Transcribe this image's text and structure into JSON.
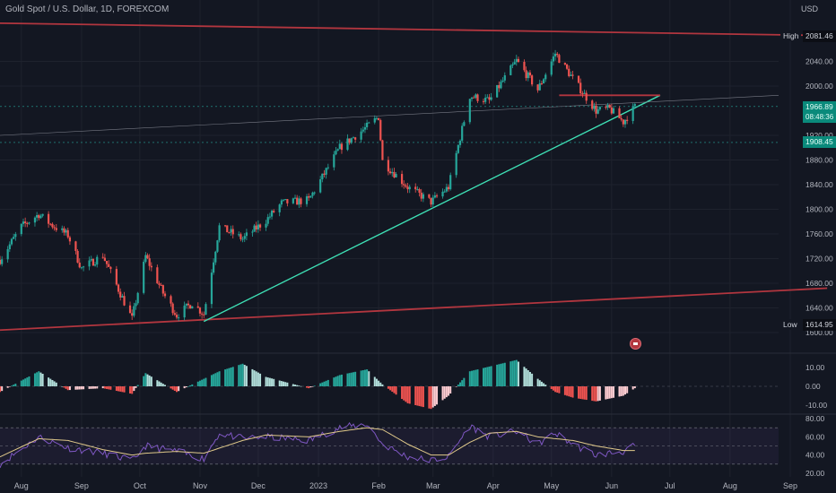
{
  "header": {
    "symbol_line": "Gold Spot / U.S. Dollar, 1D, FOREXCOM",
    "currency": "USD"
  },
  "markers": {
    "high": {
      "label": "High",
      "value": "2081.46"
    },
    "low": {
      "label": "Low",
      "value": "1614.95"
    },
    "last_price": "1966.89",
    "countdown": "08:48:36",
    "ref_price": "1908.45"
  },
  "colors": {
    "background": "#131722",
    "up": "#26a69a",
    "down": "#ef5350",
    "channel": "#b2363f",
    "trend": "#3ee0b5",
    "osc_up": "#26a69a",
    "osc_down": "#ef5350",
    "rsi": "#7e57c2",
    "rsi_ma": "#e0c98a"
  },
  "chart_data": [
    {
      "type": "candlestick",
      "title": "Gold Spot / U.S. Dollar, 1D, FOREXCOM",
      "x": [
        "Aug",
        "Sep",
        "Oct",
        "Nov",
        "Dec",
        "2023",
        "Feb",
        "Mar",
        "Apr",
        "May",
        "Jun",
        "Jul",
        "Aug",
        "Sep"
      ],
      "ylim": [
        1580,
        2110
      ],
      "y_ticks": [
        1600,
        1640,
        1680,
        1720,
        1760,
        1800,
        1840,
        1880,
        1920,
        2000,
        2040
      ],
      "grid": true,
      "series_path": [
        {
          "date": "2022-07-21",
          "close": 1718
        },
        {
          "date": "2022-08-01",
          "close": 1772
        },
        {
          "date": "2022-08-10",
          "close": 1792
        },
        {
          "date": "2022-08-16",
          "close": 1776
        },
        {
          "date": "2022-08-25",
          "close": 1758
        },
        {
          "date": "2022-09-01",
          "close": 1704
        },
        {
          "date": "2022-09-12",
          "close": 1725
        },
        {
          "date": "2022-09-27",
          "close": 1622
        },
        {
          "date": "2022-10-04",
          "close": 1724
        },
        {
          "date": "2022-10-13",
          "close": 1664
        },
        {
          "date": "2022-10-20",
          "close": 1628
        },
        {
          "date": "2022-10-28",
          "close": 1648
        },
        {
          "date": "2022-11-03",
          "close": 1630
        },
        {
          "date": "2022-11-11",
          "close": 1772
        },
        {
          "date": "2022-11-23",
          "close": 1752
        },
        {
          "date": "2022-12-05",
          "close": 1782
        },
        {
          "date": "2022-12-13",
          "close": 1810
        },
        {
          "date": "2022-12-27",
          "close": 1815
        },
        {
          "date": "2023-01-12",
          "close": 1900
        },
        {
          "date": "2023-01-26",
          "close": 1934
        },
        {
          "date": "2023-02-01",
          "close": 1950
        },
        {
          "date": "2023-02-03",
          "close": 1878
        },
        {
          "date": "2023-02-16",
          "close": 1836
        },
        {
          "date": "2023-02-28",
          "close": 1812
        },
        {
          "date": "2023-03-09",
          "close": 1836
        },
        {
          "date": "2023-03-20",
          "close": 1984
        },
        {
          "date": "2023-03-30",
          "close": 1976
        },
        {
          "date": "2023-04-13",
          "close": 2041
        },
        {
          "date": "2023-04-24",
          "close": 1994
        },
        {
          "date": "2023-05-03",
          "close": 2053
        },
        {
          "date": "2023-05-12",
          "close": 2012
        },
        {
          "date": "2023-05-24",
          "close": 1960
        },
        {
          "date": "2023-05-31",
          "close": 1963
        },
        {
          "date": "2023-06-07",
          "close": 1942
        },
        {
          "date": "2023-06-13",
          "close": 1966
        }
      ],
      "overlays": [
        {
          "name": "upper-channel",
          "from": {
            "date": "2022-07-21",
            "price": 2102
          },
          "to": {
            "date": "2023-09-20",
            "price": 2082
          }
        },
        {
          "name": "lower-channel",
          "from": {
            "date": "2022-07-21",
            "price": 1604
          },
          "to": {
            "date": "2023-09-20",
            "price": 1672
          }
        },
        {
          "name": "trendline",
          "from": {
            "date": "2022-11-03",
            "price": 1618
          },
          "to": {
            "date": "2023-06-26",
            "price": 1985
          }
        },
        {
          "name": "resistance",
          "from": {
            "date": "2023-05-05",
            "price": 1985
          },
          "to": {
            "date": "2023-06-26",
            "price": 1985
          }
        }
      ]
    },
    {
      "type": "bar",
      "title": "",
      "y_ticks": [
        10,
        0,
        -10
      ],
      "y_tick_labels": [
        "10.00",
        "0.00",
        "-10.00"
      ],
      "ylim": [
        -14,
        14
      ],
      "series_path": [
        {
          "date": "2022-07-21",
          "value": -3
        },
        {
          "date": "2022-08-10",
          "value": 8
        },
        {
          "date": "2022-08-25",
          "value": -2
        },
        {
          "date": "2022-09-12",
          "value": -1
        },
        {
          "date": "2022-09-27",
          "value": -4
        },
        {
          "date": "2022-10-04",
          "value": 7
        },
        {
          "date": "2022-10-20",
          "value": -3
        },
        {
          "date": "2022-11-11",
          "value": 8
        },
        {
          "date": "2022-11-23",
          "value": 12
        },
        {
          "date": "2022-12-05",
          "value": 5
        },
        {
          "date": "2022-12-27",
          "value": -1
        },
        {
          "date": "2023-01-12",
          "value": 6
        },
        {
          "date": "2023-01-26",
          "value": 9
        },
        {
          "date": "2023-02-03",
          "value": 1
        },
        {
          "date": "2023-02-16",
          "value": -9
        },
        {
          "date": "2023-02-28",
          "value": -12
        },
        {
          "date": "2023-03-09",
          "value": -5
        },
        {
          "date": "2023-03-20",
          "value": 8
        },
        {
          "date": "2023-04-13",
          "value": 14
        },
        {
          "date": "2023-04-24",
          "value": 4
        },
        {
          "date": "2023-05-03",
          "value": -3
        },
        {
          "date": "2023-05-12",
          "value": -6
        },
        {
          "date": "2023-05-24",
          "value": -8
        },
        {
          "date": "2023-06-07",
          "value": -5
        },
        {
          "date": "2023-06-13",
          "value": -1
        }
      ]
    },
    {
      "type": "line",
      "title": "",
      "y_ticks": [
        80,
        60,
        40,
        20
      ],
      "y_tick_labels": [
        "80.00",
        "60.00",
        "40.00",
        "20.00"
      ],
      "ylim": [
        16,
        84
      ],
      "bands": [
        70,
        50,
        30
      ],
      "series": [
        {
          "values": [
            {
              "date": "2022-07-21",
              "value": 30
            },
            {
              "date": "2022-08-10",
              "value": 60
            },
            {
              "date": "2022-08-25",
              "value": 48
            },
            {
              "date": "2022-09-12",
              "value": 42
            },
            {
              "date": "2022-09-27",
              "value": 34
            },
            {
              "date": "2022-10-04",
              "value": 50
            },
            {
              "date": "2022-10-20",
              "value": 44
            },
            {
              "date": "2022-11-03",
              "value": 36
            },
            {
              "date": "2022-11-11",
              "value": 64
            },
            {
              "date": "2022-11-23",
              "value": 58
            },
            {
              "date": "2022-12-05",
              "value": 60
            },
            {
              "date": "2022-12-27",
              "value": 56
            },
            {
              "date": "2023-01-12",
              "value": 70
            },
            {
              "date": "2023-01-26",
              "value": 74
            },
            {
              "date": "2023-02-03",
              "value": 52
            },
            {
              "date": "2023-02-16",
              "value": 38
            },
            {
              "date": "2023-02-28",
              "value": 34
            },
            {
              "date": "2023-03-09",
              "value": 38
            },
            {
              "date": "2023-03-20",
              "value": 72
            },
            {
              "date": "2023-03-30",
              "value": 60
            },
            {
              "date": "2023-04-13",
              "value": 66
            },
            {
              "date": "2023-04-24",
              "value": 52
            },
            {
              "date": "2023-05-03",
              "value": 64
            },
            {
              "date": "2023-05-12",
              "value": 52
            },
            {
              "date": "2023-05-24",
              "value": 40
            },
            {
              "date": "2023-06-07",
              "value": 44
            },
            {
              "date": "2023-06-13",
              "value": 50
            }
          ]
        },
        {
          "values": [
            {
              "date": "2022-07-21",
              "value": 38
            },
            {
              "date": "2022-08-10",
              "value": 58
            },
            {
              "date": "2022-08-25",
              "value": 56
            },
            {
              "date": "2022-09-12",
              "value": 46
            },
            {
              "date": "2022-09-27",
              "value": 40
            },
            {
              "date": "2022-10-04",
              "value": 42
            },
            {
              "date": "2022-10-20",
              "value": 44
            },
            {
              "date": "2022-11-03",
              "value": 42
            },
            {
              "date": "2022-11-23",
              "value": 56
            },
            {
              "date": "2022-12-05",
              "value": 62
            },
            {
              "date": "2022-12-27",
              "value": 60
            },
            {
              "date": "2023-01-12",
              "value": 66
            },
            {
              "date": "2023-01-26",
              "value": 70
            },
            {
              "date": "2023-02-03",
              "value": 68
            },
            {
              "date": "2023-02-16",
              "value": 52
            },
            {
              "date": "2023-02-28",
              "value": 40
            },
            {
              "date": "2023-03-09",
              "value": 40
            },
            {
              "date": "2023-03-20",
              "value": 54
            },
            {
              "date": "2023-03-30",
              "value": 64
            },
            {
              "date": "2023-04-13",
              "value": 66
            },
            {
              "date": "2023-04-24",
              "value": 60
            },
            {
              "date": "2023-05-03",
              "value": 58
            },
            {
              "date": "2023-05-12",
              "value": 56
            },
            {
              "date": "2023-05-24",
              "value": 50
            },
            {
              "date": "2023-06-07",
              "value": 45
            },
            {
              "date": "2023-06-13",
              "value": 45
            }
          ]
        }
      ]
    }
  ]
}
